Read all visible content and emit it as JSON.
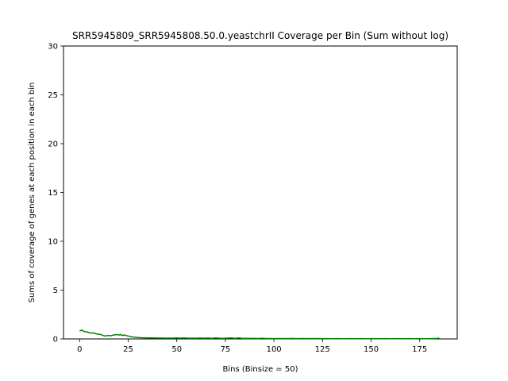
{
  "chart_data": {
    "type": "line",
    "title": "SRR5945809_SRR5945808.50.0.yeastchrII Coverage per Bin (Sum without log)",
    "xlabel": "Bins (Binsize = 50)",
    "ylabel": "Sums of coverage of genes at each position in each bin",
    "xlim": [
      -8.3,
      194.3
    ],
    "ylim": [
      0,
      30
    ],
    "xticks": [
      0,
      25,
      50,
      75,
      100,
      125,
      150,
      175
    ],
    "yticks": [
      0,
      5,
      10,
      15,
      20,
      25,
      30
    ],
    "grid": false,
    "line_color": "#008000",
    "series": [
      {
        "x": [
          0,
          1,
          2,
          3,
          4,
          5,
          6,
          7,
          8,
          9,
          10,
          11,
          12,
          13,
          14,
          15,
          16,
          17,
          18,
          19,
          20,
          21,
          22,
          23,
          24,
          25,
          26,
          27,
          28,
          29,
          30,
          32,
          34,
          36,
          38,
          40,
          42,
          44,
          46,
          48,
          50,
          52,
          54,
          56,
          58,
          60,
          62,
          64,
          66,
          68,
          70,
          72,
          74,
          76,
          78,
          80,
          82,
          84,
          86,
          88,
          90,
          92,
          94,
          96,
          98,
          100,
          103,
          106,
          109,
          112,
          115,
          118,
          121,
          124,
          127,
          130,
          133,
          136,
          139,
          142,
          145,
          148,
          151,
          154,
          157,
          160,
          163,
          166,
          169,
          172,
          175,
          178,
          181,
          184,
          185
        ],
        "values": [
          0.8,
          0.92,
          0.78,
          0.74,
          0.7,
          0.64,
          0.6,
          0.62,
          0.55,
          0.5,
          0.48,
          0.45,
          0.36,
          0.3,
          0.33,
          0.35,
          0.32,
          0.38,
          0.42,
          0.45,
          0.4,
          0.44,
          0.36,
          0.4,
          0.34,
          0.3,
          0.25,
          0.2,
          0.18,
          0.16,
          0.14,
          0.12,
          0.11,
          0.1,
          0.1,
          0.09,
          0.09,
          0.08,
          0.08,
          0.08,
          0.1,
          0.08,
          0.1,
          0.07,
          0.08,
          0.07,
          0.09,
          0.07,
          0.09,
          0.06,
          0.1,
          0.07,
          0.06,
          0.08,
          0.1,
          0.06,
          0.1,
          0.05,
          0.06,
          0.05,
          0.06,
          0.04,
          0.07,
          0.04,
          0.04,
          0.03,
          0.04,
          0.03,
          0.05,
          0.03,
          0.04,
          0.03,
          0.04,
          0.03,
          0.03,
          0.02,
          0.03,
          0.02,
          0.03,
          0.02,
          0.03,
          0.02,
          0.03,
          0.02,
          0.03,
          0.02,
          0.03,
          0.02,
          0.03,
          0.02,
          0.03,
          0.02,
          0.03,
          0.05,
          0.1
        ]
      }
    ]
  }
}
